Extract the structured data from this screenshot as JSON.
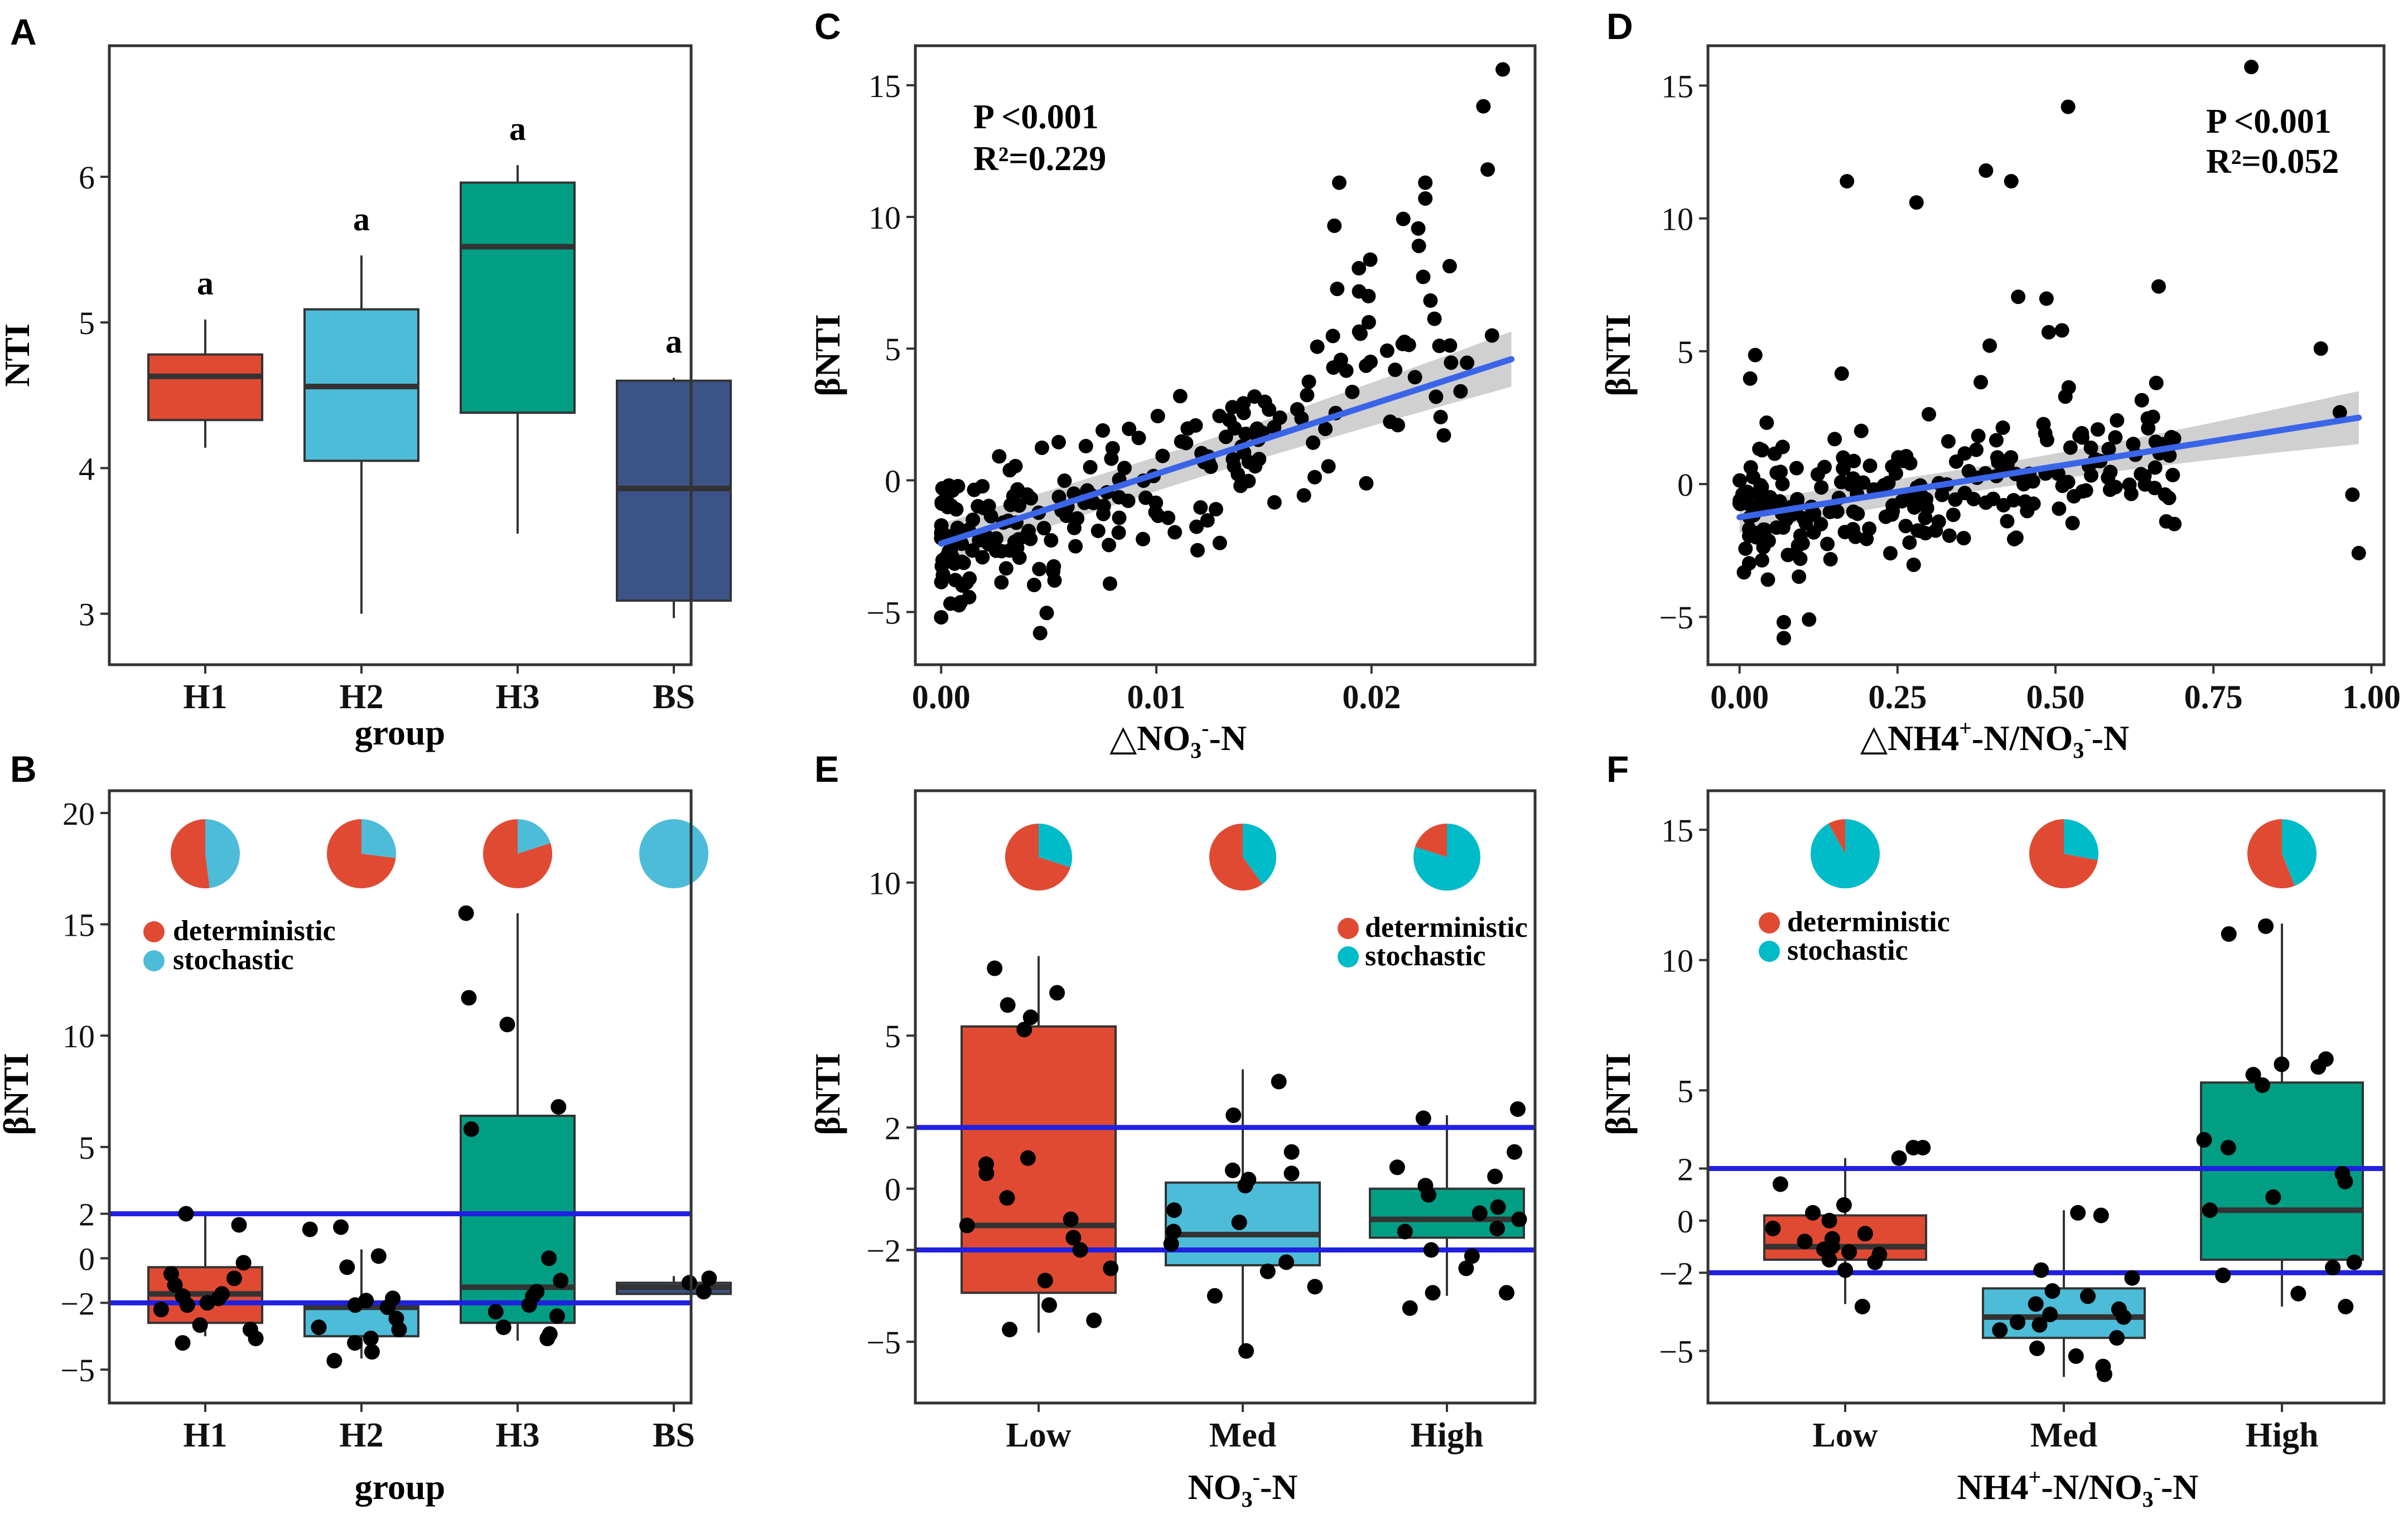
{
  "colors": {
    "red": "#e04a33",
    "skyblue": "#4cbcd8",
    "teal": "#019e84",
    "navy": "#3c5388",
    "cyan": "#00bbc8",
    "blue_line": "#2020e0",
    "fit_line": "#3a65e8",
    "ci_band": "#c8c8c8",
    "median": "#333333",
    "point": "#000000"
  },
  "chart_data": [
    {
      "panel": "A",
      "type": "box",
      "xlabel": "group",
      "ylabel": "NTI",
      "ylim": [
        2.65,
        6.9
      ],
      "yticks": [
        3,
        4,
        5,
        6
      ],
      "categories": [
        "H1",
        "H2",
        "H3",
        "BS"
      ],
      "fill_colors": [
        "red",
        "skyblue",
        "teal",
        "navy"
      ],
      "boxes": [
        {
          "min": 4.14,
          "q1": 4.33,
          "median": 4.63,
          "q3": 4.78,
          "max": 5.02
        },
        {
          "min": 3.0,
          "q1": 4.05,
          "median": 4.56,
          "q3": 5.09,
          "max": 5.46
        },
        {
          "min": 3.55,
          "q1": 4.38,
          "median": 5.52,
          "q3": 5.96,
          "max": 6.08
        },
        {
          "min": 2.97,
          "q1": 3.09,
          "median": 3.86,
          "q3": 4.6,
          "max": 4.62
        }
      ],
      "annotations": [
        "a",
        "a",
        "a",
        "a"
      ]
    },
    {
      "panel": "B",
      "type": "box",
      "xlabel": "group",
      "ylabel": "βNTI",
      "ylim": [
        -6.5,
        21
      ],
      "yticks": [
        -5,
        -2,
        0,
        2,
        5,
        10,
        15,
        20
      ],
      "hlines": [
        2,
        -2
      ],
      "categories": [
        "H1",
        "H2",
        "H3",
        "BS"
      ],
      "fill_colors": [
        "red",
        "skyblue",
        "teal",
        "navy"
      ],
      "boxes": [
        {
          "min": -3.5,
          "q1": -2.9,
          "median": -1.6,
          "q3": -0.4,
          "max": 2.0
        },
        {
          "min": -4.5,
          "q1": -3.5,
          "median": -2.2,
          "q3": -2.0,
          "max": 0.4
        },
        {
          "min": -3.7,
          "q1": -2.9,
          "median": -1.3,
          "q3": 6.4,
          "max": 15.5
        },
        {
          "min": -1.6,
          "q1": -1.6,
          "median": -1.3,
          "q3": -1.1,
          "max": -0.8
        }
      ],
      "jitter": [
        [
          -1.6,
          -3.2,
          -3.8,
          -2.3,
          -1.2,
          -0.9,
          -0.7,
          2.0,
          1.5,
          -2.1,
          -1.8,
          -0.2,
          -3.6,
          -2.0,
          -1.7,
          -3.0
        ],
        [
          -2.1,
          -3.6,
          -4.6,
          -2.7,
          -3.1,
          -1.8,
          1.3,
          1.4,
          -3.8,
          -1.9,
          -4.2,
          0.1,
          -2.2,
          -0.4,
          -3.2
        ],
        [
          15.5,
          11.7,
          10.5,
          6.8,
          5.8,
          0.0,
          -1.7,
          -2.6,
          -3.1,
          -3.6,
          -3.4,
          -2.1,
          -1.5,
          -2.4,
          -1.0
        ],
        [
          -1.5,
          -0.9,
          -1.1
        ]
      ],
      "pie_deterministic_share": [
        0.52,
        0.73,
        0.8,
        0.0
      ],
      "legend": [
        "deterministic",
        "stochastic"
      ],
      "legend_colors": [
        "red",
        "skyblue"
      ]
    },
    {
      "panel": "C",
      "type": "scatter",
      "xlabel": "△NO3-N",
      "ylabel": "βNTI",
      "xlim": [
        -0.0012,
        0.0276
      ],
      "ylim": [
        -7.0,
        16.5
      ],
      "xticks": [
        0.0,
        0.01,
        0.02
      ],
      "xtick_labels": [
        "0.00",
        "0.01",
        "0.02"
      ],
      "yticks": [
        -5,
        0,
        5,
        10,
        15
      ],
      "fit": {
        "x": [
          0.0,
          0.0265
        ],
        "y": [
          -2.4,
          4.6
        ],
        "ci_halfwidth": [
          0.5,
          0.9
        ]
      },
      "stats": {
        "p_label": "P <0.001",
        "r2_label": "R²=0.229"
      }
    },
    {
      "panel": "D",
      "type": "scatter",
      "xlabel": "△NH4+-N/NO3-N",
      "ylabel": "βNTI",
      "xlim": [
        -0.05,
        1.02
      ],
      "ylim": [
        -6.8,
        16.5
      ],
      "xticks": [
        0.0,
        0.25,
        0.5,
        0.75,
        1.0
      ],
      "xtick_labels": [
        "0.00",
        "0.25",
        "0.50",
        "0.75",
        "1.00"
      ],
      "yticks": [
        -5,
        0,
        5,
        10,
        15
      ],
      "fit": {
        "x": [
          0.0,
          0.98
        ],
        "y": [
          -1.25,
          2.5
        ],
        "ci_halfwidth": [
          0.3,
          0.85
        ]
      },
      "stats": {
        "p_label": "P <0.001",
        "r2_label": "R²=0.052"
      }
    },
    {
      "panel": "E",
      "type": "box",
      "xlabel": "NO3-N",
      "ylabel": "βNTI",
      "ylim": [
        -7.0,
        13.0
      ],
      "yticks": [
        -5,
        -2,
        0,
        2,
        5,
        10
      ],
      "hlines": [
        2,
        -2
      ],
      "categories": [
        "Low",
        "Med",
        "High"
      ],
      "fill_colors": [
        "red",
        "skyblue",
        "teal"
      ],
      "boxes": [
        {
          "min": -4.7,
          "q1": -3.4,
          "median": -1.2,
          "q3": 5.3,
          "max": 7.6
        },
        {
          "min": -5.3,
          "q1": -2.5,
          "median": -1.5,
          "q3": 0.2,
          "max": 3.9
        },
        {
          "min": -3.5,
          "q1": -1.6,
          "median": -1.0,
          "q3": 0.0,
          "max": 2.4
        }
      ],
      "jitter": [
        [
          5.6,
          6.4,
          7.2,
          5.2,
          0.5,
          -1.2,
          -2.0,
          -3.8,
          -4.3,
          -2.6,
          -0.3,
          0.8,
          1.0,
          -1.6,
          6.0,
          -3.0,
          -4.6,
          -1.0
        ],
        [
          3.5,
          2.4,
          1.2,
          0.6,
          0.3,
          -0.7,
          -1.4,
          -1.8,
          -2.4,
          -3.2,
          -3.5,
          -1.1,
          -2.7,
          0.5,
          -5.3,
          0.1
        ],
        [
          2.6,
          2.3,
          1.2,
          0.7,
          0.1,
          -0.2,
          -0.6,
          -1.0,
          -1.4,
          -2.0,
          -2.6,
          -3.4,
          -3.9,
          -0.8,
          0.4,
          -1.3,
          -2.2,
          -3.4
        ]
      ],
      "pie_deterministic_share": [
        0.7,
        0.6,
        0.2
      ],
      "legend": [
        "deterministic",
        "stochastic"
      ],
      "legend_colors": [
        "red",
        "cyan"
      ]
    },
    {
      "panel": "F",
      "type": "box",
      "xlabel": "NH4+-N/NO3-N",
      "ylabel": "βNTI",
      "ylim": [
        -7.0,
        16.5
      ],
      "yticks": [
        -5,
        -2,
        0,
        2,
        5,
        10,
        15
      ],
      "hlines": [
        2,
        -2
      ],
      "categories": [
        "Low",
        "Med",
        "High"
      ],
      "fill_colors": [
        "red",
        "skyblue",
        "teal"
      ],
      "boxes": [
        {
          "min": -3.2,
          "q1": -1.5,
          "median": -1.0,
          "q3": 0.2,
          "max": 2.4
        },
        {
          "min": -6.0,
          "q1": -4.5,
          "median": -3.7,
          "q3": -2.6,
          "max": 0.4
        },
        {
          "min": -3.3,
          "q1": -1.5,
          "median": 0.4,
          "q3": 5.3,
          "max": 11.4
        }
      ],
      "jitter": [
        [
          1.4,
          2.8,
          2.8,
          2.4,
          0.3,
          -0.3,
          -0.8,
          -1.1,
          -1.3,
          -1.6,
          -0.5,
          0.0,
          -3.3,
          -1.9,
          0.6,
          -1.0,
          -1.5,
          -0.7,
          -1.2
        ],
        [
          0.2,
          0.3,
          -1.9,
          -2.2,
          -2.7,
          -3.2,
          -3.6,
          -4.0,
          -4.5,
          -5.2,
          -5.9,
          -4.9,
          -3.4,
          -4.2,
          -3.9,
          -2.9,
          -5.6,
          -3.7
        ],
        [
          11.3,
          11.0,
          6.2,
          6.0,
          5.9,
          5.6,
          5.2,
          1.8,
          1.5,
          0.9,
          0.4,
          -1.6,
          -2.1,
          -2.8,
          -3.3,
          -1.8,
          3.1,
          2.8
        ]
      ],
      "pie_deterministic_share": [
        0.08,
        0.72,
        0.56
      ],
      "legend": [
        "deterministic",
        "stochastic"
      ],
      "legend_colors": [
        "red",
        "cyan"
      ]
    }
  ]
}
